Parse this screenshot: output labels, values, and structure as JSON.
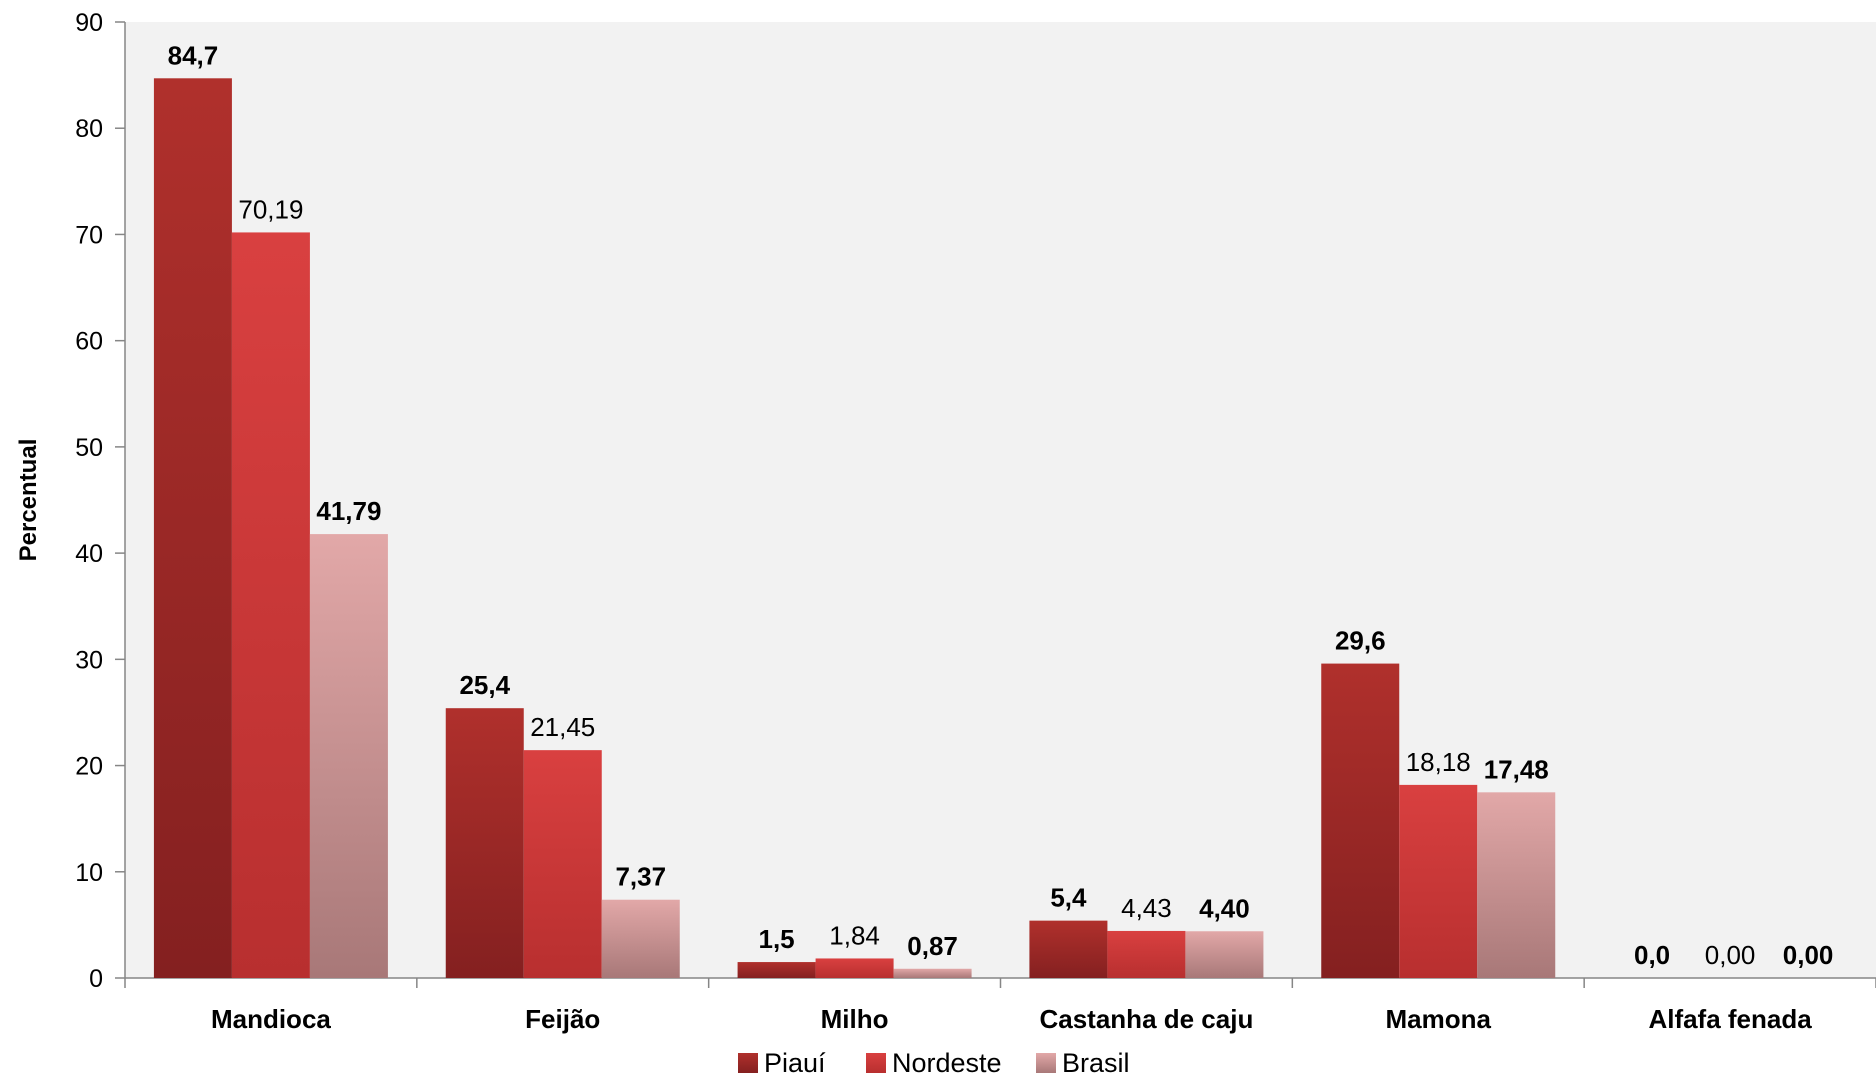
{
  "chart_data": {
    "type": "bar",
    "title": "",
    "xlabel": "",
    "ylabel": "Percentual",
    "ylim": [
      0,
      90
    ],
    "y_ticks": [
      "0",
      "10",
      "20",
      "30",
      "40",
      "50",
      "60",
      "70",
      "80",
      "90"
    ],
    "categories": [
      "Mandioca",
      "Feijão",
      "Milho",
      "Castanha de caju",
      "Mamona",
      "Alfafa fenada"
    ],
    "series": [
      {
        "name": "Piauí",
        "color": "#a52a2a",
        "values": [
          84.7,
          25.4,
          1.5,
          5.4,
          29.6,
          0.0
        ],
        "labels": [
          "84,7",
          "25,4",
          "1,5",
          "5,4",
          "29,6",
          "0,0"
        ],
        "label_bold": true
      },
      {
        "name": "Nordeste",
        "color": "#d13b3b",
        "values": [
          70.19,
          21.45,
          1.84,
          4.43,
          18.18,
          0.0
        ],
        "labels": [
          "70,19",
          "21,45",
          "1,84",
          "4,43",
          "18,18",
          "0,00"
        ],
        "label_bold": false
      },
      {
        "name": "Brasil",
        "color": "#d9a0a0",
        "values": [
          41.79,
          7.37,
          0.87,
          4.4,
          17.48,
          0.0
        ],
        "labels": [
          "41,79",
          "7,37",
          "0,87",
          "4,40",
          "17,48",
          "0,00"
        ],
        "label_bold": true
      }
    ],
    "grid": false,
    "legend_position": "bottom",
    "plot_background": "#f2f2f2"
  }
}
